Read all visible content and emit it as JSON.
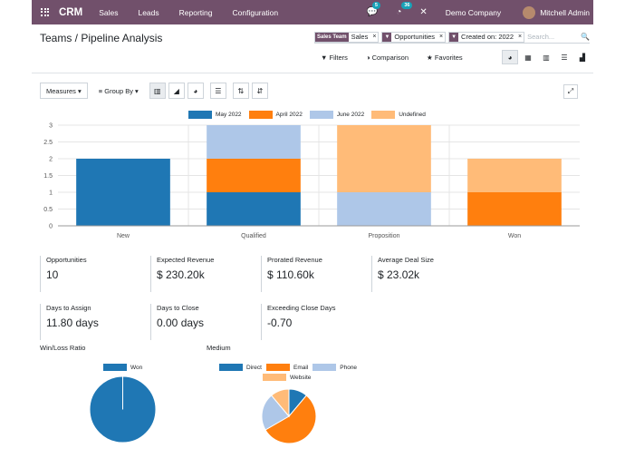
{
  "topbar": {
    "app_name": "CRM",
    "menus": [
      "Sales",
      "Leads",
      "Reporting",
      "Configuration"
    ],
    "messages_count": "5",
    "activities_count": "36",
    "company": "Demo Company",
    "user": "Mitchell Admin"
  },
  "breadcrumb": {
    "parent": "Teams",
    "sep": " / ",
    "current": "Pipeline Analysis"
  },
  "search": {
    "facets": [
      {
        "label": "Sales Team",
        "value": "Sales"
      },
      {
        "label": "▼",
        "value": "Opportunities"
      },
      {
        "label": "▼",
        "value": "Created on: 2022"
      }
    ],
    "placeholder": "Search..."
  },
  "filters": {
    "filters": "Filters",
    "comparison": "Comparison",
    "favorites": "Favorites"
  },
  "toolbar": {
    "measures": "Measures",
    "group_by": "Group By"
  },
  "colors": {
    "may": "#1f77b4",
    "april": "#ff7f0e",
    "june": "#aec7e8",
    "undefined": "#ffbb78"
  },
  "chart_data": {
    "type": "bar",
    "stacked": true,
    "categories": [
      "New",
      "Qualified",
      "Proposition",
      "Won"
    ],
    "series": [
      {
        "name": "May 2022",
        "values": [
          2,
          1,
          0,
          0
        ],
        "color": "#1f77b4"
      },
      {
        "name": "April 2022",
        "values": [
          0,
          1,
          0,
          1
        ],
        "color": "#ff7f0e"
      },
      {
        "name": "June 2022",
        "values": [
          0,
          1,
          1,
          0
        ],
        "color": "#aec7e8"
      },
      {
        "name": "Undefined",
        "values": [
          0,
          0,
          2,
          1
        ],
        "color": "#ffbb78"
      }
    ],
    "ylim": [
      0,
      3
    ],
    "yticks": [
      "0",
      "0.5",
      "1",
      "1.5",
      "2",
      "2.5",
      "3"
    ],
    "legend": "top"
  },
  "kpis": [
    {
      "title": "Opportunities",
      "value": "10"
    },
    {
      "title": "Expected Revenue",
      "value": "$ 230.20k"
    },
    {
      "title": "Prorated Revenue",
      "value": "$ 110.60k"
    },
    {
      "title": "Average Deal Size",
      "value": "$ 23.02k"
    },
    {
      "title": "Days to Assign",
      "value": "11.80 days"
    },
    {
      "title": "Days to Close",
      "value": "0.00 days"
    },
    {
      "title": "Exceeding Close Days",
      "value": "-0.70"
    }
  ],
  "pies": {
    "winloss": {
      "title": "Win/Loss Ratio",
      "legend": [
        "Won"
      ],
      "values": [
        1
      ],
      "colors": [
        "#1f77b4"
      ]
    },
    "medium": {
      "title": "Medium",
      "legend": [
        "Direct",
        "Email",
        "Phone",
        "Website"
      ],
      "values": [
        1,
        5,
        2,
        1
      ],
      "colors": [
        "#1f77b4",
        "#ff7f0e",
        "#aec7e8",
        "#ffbb78"
      ]
    }
  }
}
